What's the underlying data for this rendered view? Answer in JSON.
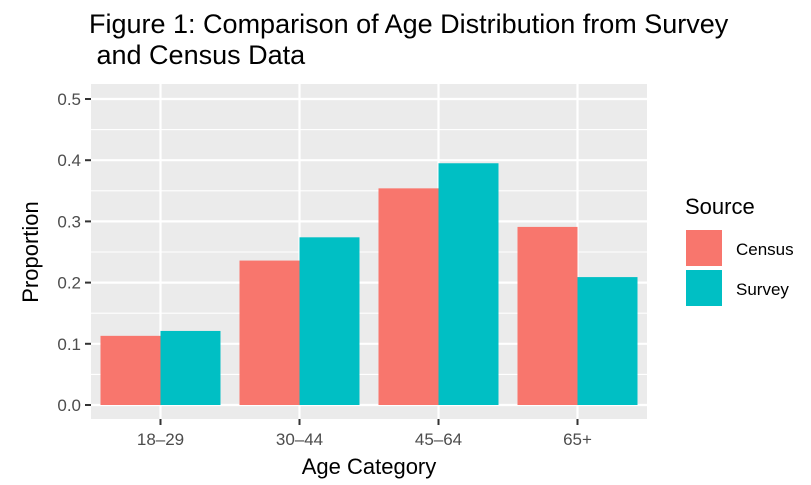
{
  "chart_data": {
    "type": "bar",
    "title_lines": [
      "Figure 1: Comparison of Age Distribution from Survey",
      " and Census Data"
    ],
    "xlabel": "Age Category",
    "ylabel": "Proportion",
    "categories": [
      "18–29",
      "30–44",
      "45–64",
      "65+"
    ],
    "series": [
      {
        "name": "Census",
        "color": "#F8766D",
        "values": [
          0.113,
          0.236,
          0.354,
          0.291
        ]
      },
      {
        "name": "Survey",
        "color": "#00BFC4",
        "values": [
          0.121,
          0.274,
          0.395,
          0.209
        ]
      }
    ],
    "ylim": [
      0,
      0.5
    ],
    "yticks": [
      0.0,
      0.1,
      0.2,
      0.3,
      0.4,
      0.5
    ],
    "ytick_labels": [
      "0.0",
      "0.1",
      "0.2",
      "0.3",
      "0.4",
      "0.5"
    ],
    "legend": {
      "title": "Source",
      "position": "right"
    },
    "grid": true,
    "panel_background": "#EBEBEB",
    "grid_color": "#FFFFFF"
  }
}
